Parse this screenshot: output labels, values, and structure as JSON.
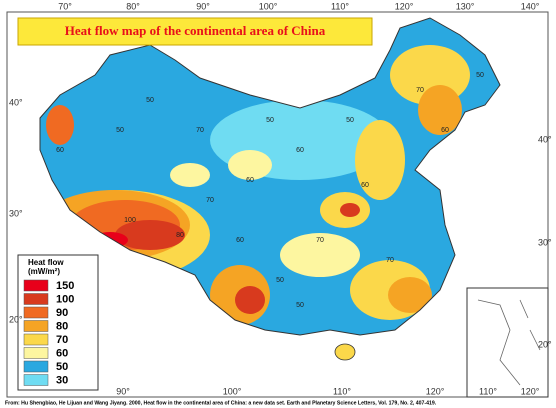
{
  "map": {
    "title": "Heat flow map of the continental area of China",
    "top_longitudes": [
      "70°",
      "80°",
      "90°",
      "100°",
      "110°",
      "120°",
      "130°",
      "140°"
    ],
    "bottom_longitudes": [
      "90°",
      "100°",
      "110°",
      "120°"
    ],
    "inset_longitudes": [
      "110°",
      "120°"
    ],
    "left_latitudes": [
      "40°",
      "30°",
      "20°"
    ],
    "right_latitudes": [
      "40°",
      "30°",
      "20°"
    ],
    "legend": {
      "title": "Heat flow",
      "unit": "(mW/m²)",
      "items": [
        {
          "label": "150",
          "color": "#e8001a"
        },
        {
          "label": "100",
          "color": "#d83a1e"
        },
        {
          "label": "90",
          "color": "#f06a22"
        },
        {
          "label": "80",
          "color": "#f5a424"
        },
        {
          "label": "70",
          "color": "#fbd84a"
        },
        {
          "label": "60",
          "color": "#fdf6a0"
        },
        {
          "label": "50",
          "color": "#2aa8e0"
        },
        {
          "label": "30",
          "color": "#6fdcf2"
        }
      ]
    },
    "contour_labels": [
      "50",
      "60",
      "50",
      "70",
      "50",
      "60",
      "50",
      "70",
      "60",
      "50",
      "100",
      "80",
      "70",
      "60",
      "50",
      "70",
      "60",
      "50",
      "70",
      "60"
    ],
    "citation": "From: Hu Shengbiao, He Lijuan and Wang Jiyang. 2000, Heat flow in the continental area of China: a new data set. Earth and Planetary Science Letters, Vol. 179, No. 2, 407-419."
  }
}
